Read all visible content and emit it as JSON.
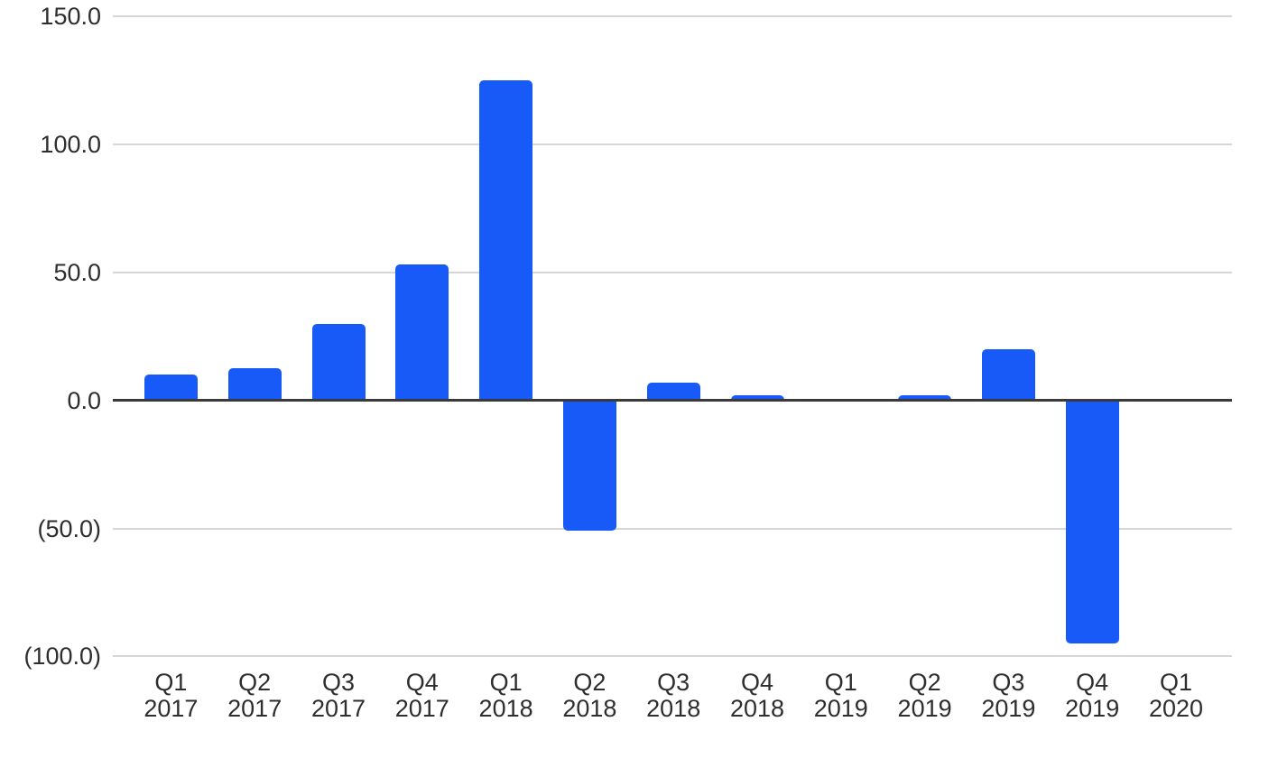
{
  "chart_data": {
    "type": "bar",
    "title": "",
    "xlabel": "",
    "ylabel": "",
    "categories": [
      "Q1 2017",
      "Q2 2017",
      "Q3 2017",
      "Q4 2017",
      "Q1 2018",
      "Q2 2018",
      "Q3 2018",
      "Q4 2018",
      "Q1 2019",
      "Q2 2019",
      "Q3 2019",
      "Q4 2019",
      "Q1 2020"
    ],
    "values": [
      10,
      12.5,
      30,
      53,
      125,
      -51,
      7,
      2,
      0,
      2,
      20,
      -95,
      0
    ],
    "ylim": [
      -100,
      150
    ],
    "yticks": [
      {
        "value": 150,
        "label": "150.0"
      },
      {
        "value": 100,
        "label": "100.0"
      },
      {
        "value": 50,
        "label": "50.0"
      },
      {
        "value": 0,
        "label": "0.0"
      },
      {
        "value": -50,
        "label": "(50.0)"
      },
      {
        "value": -100,
        "label": "(100.0)"
      }
    ],
    "grid": true,
    "legend_position": "none",
    "colors": {
      "bar": "#175af7",
      "gridline": "#d6d6d6",
      "zero_line": "#3a3a3a",
      "text": "#2e2e2e",
      "background": "#ffffff"
    }
  }
}
